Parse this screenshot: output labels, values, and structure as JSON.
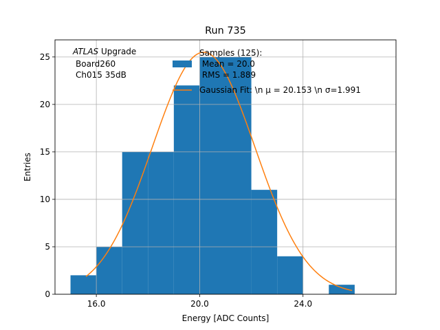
{
  "chart_data": {
    "type": "bar",
    "title": "Run 735",
    "xlabel": "Energy [ADC Counts]",
    "ylabel": "Entries",
    "xlim": [
      14.4,
      27.6
    ],
    "ylim": [
      0,
      26.8
    ],
    "grid": true,
    "x_ticks": [
      16.0,
      20.0,
      24.0
    ],
    "x_tick_labels": [
      "16.0",
      "20.0",
      "24.0"
    ],
    "y_ticks": [
      0,
      5,
      10,
      15,
      20,
      25
    ],
    "y_tick_labels": [
      "0",
      "5",
      "10",
      "15",
      "20",
      "25"
    ],
    "bins": [
      {
        "x0": 15,
        "x1": 16,
        "count": 2
      },
      {
        "x0": 16,
        "x1": 17,
        "count": 5
      },
      {
        "x0": 17,
        "x1": 18,
        "count": 15
      },
      {
        "x0": 18,
        "x1": 19,
        "count": 15
      },
      {
        "x0": 19,
        "x1": 20,
        "count": 22
      },
      {
        "x0": 20,
        "x1": 21,
        "count": 25
      },
      {
        "x0": 21,
        "x1": 22,
        "count": 25
      },
      {
        "x0": 22,
        "x1": 23,
        "count": 11
      },
      {
        "x0": 23,
        "x1": 24,
        "count": 4
      },
      {
        "x0": 24,
        "x1": 25,
        "count": 0
      },
      {
        "x0": 25,
        "x1": 26,
        "count": 1
      }
    ],
    "fit": {
      "type": "gaussian",
      "amplitude": 25.5,
      "mu": 20.153,
      "sigma": 1.991,
      "x_range": [
        15.6,
        25.9
      ]
    },
    "annotations": {
      "atlas_italic": "ATLAS",
      "atlas_rest": " Upgrade",
      "board": "Board260",
      "channel": "Ch015 35dB"
    },
    "legend": {
      "position": "upper-center",
      "entries": [
        {
          "kind": "patch",
          "lines": [
            "Samples (125):",
            " Mean = 20.0",
            " RMS = 1.889"
          ]
        },
        {
          "kind": "line",
          "text": "Gaussian Fit: \\n μ = 20.153 \\n σ=1.991"
        }
      ]
    },
    "colors": {
      "bars": "#1f77b4",
      "fit": "#ff7f0e",
      "grid": "#b0b0b0"
    }
  }
}
